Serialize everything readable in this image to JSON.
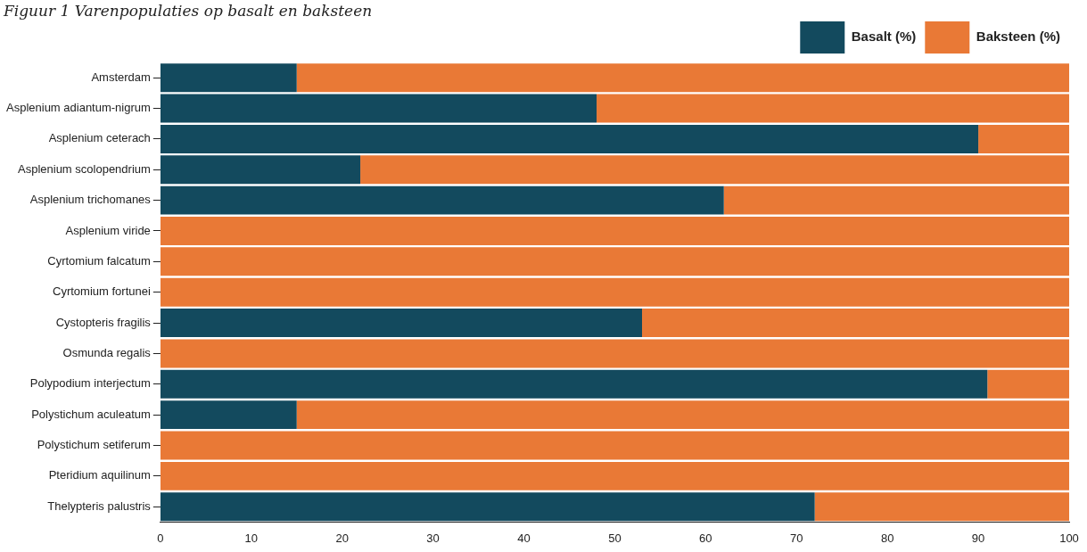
{
  "chart_data": {
    "type": "bar",
    "orientation": "horizontal",
    "stacked": true,
    "title": "Figuur 1 Varenpopulaties op basalt en baksteen",
    "categories": [
      "Amsterdam",
      "Asplenium adiantum-nigrum",
      "Asplenium ceterach",
      "Asplenium scolopendrium",
      "Asplenium trichomanes",
      "Asplenium viride",
      "Cyrtomium falcatum",
      "Cyrtomium fortunei",
      "Cystopteris fragilis",
      "Osmunda regalis",
      "Polypodium interjectum",
      "Polystichum aculeatum",
      "Polystichum setiferum",
      "Pteridium aquilinum",
      "Thelypteris palustris"
    ],
    "series": [
      {
        "name": "Basalt (%)",
        "color": "#134a5e",
        "values": [
          15,
          48,
          90,
          22,
          62,
          0,
          0,
          0,
          53,
          0,
          91,
          15,
          0,
          0,
          72
        ]
      },
      {
        "name": "Baksteen (%)",
        "color": "#e97936",
        "values": [
          85,
          52,
          10,
          78,
          38,
          100,
          100,
          100,
          47,
          100,
          9,
          85,
          100,
          100,
          28
        ]
      }
    ],
    "xlim": [
      0,
      100
    ],
    "xticks": [
      0,
      10,
      20,
      30,
      40,
      50,
      60,
      70,
      80,
      90,
      100
    ],
    "grid": false,
    "legend": "top right"
  }
}
